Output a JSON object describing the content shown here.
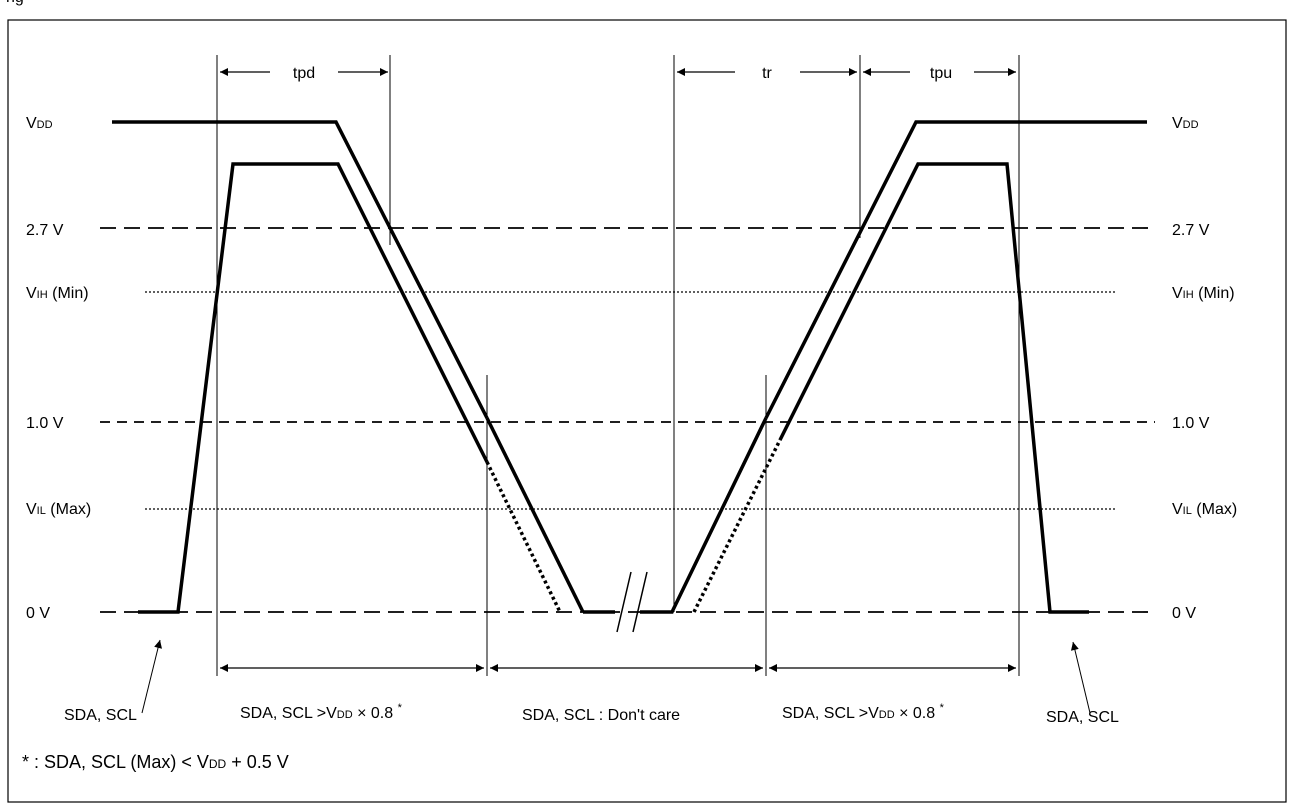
{
  "header_partial": "ng",
  "timing": {
    "tpd": "tpd",
    "tr": "tr",
    "tpu": "tpu"
  },
  "levels": {
    "vdd": {
      "main": "V",
      "sub": "DD"
    },
    "v27": "2.7 V",
    "vih": {
      "main": "V",
      "sub": "IH",
      "rest": " (Min)"
    },
    "v10": "1.0 V",
    "vil": {
      "main": "V",
      "sub": "IL",
      "rest": " (Max)"
    },
    "v0": "0 V"
  },
  "regions": {
    "left_pin": "SDA, SCL",
    "right_pin": "SDA, SCL",
    "cond_left": {
      "a": "SDA, SCL >V",
      "sub": "DD",
      "b": " × 0.8 ",
      "star": "*"
    },
    "dont_care": "SDA, SCL : Don't care",
    "cond_right": {
      "a": "SDA, SCL >V",
      "sub": "DD",
      "b": " × 0.8 ",
      "star": "*"
    }
  },
  "footnote": {
    "a": "* : SDA, SCL (Max) < V",
    "sub": "DD",
    "b": " + 0.5 V"
  }
}
